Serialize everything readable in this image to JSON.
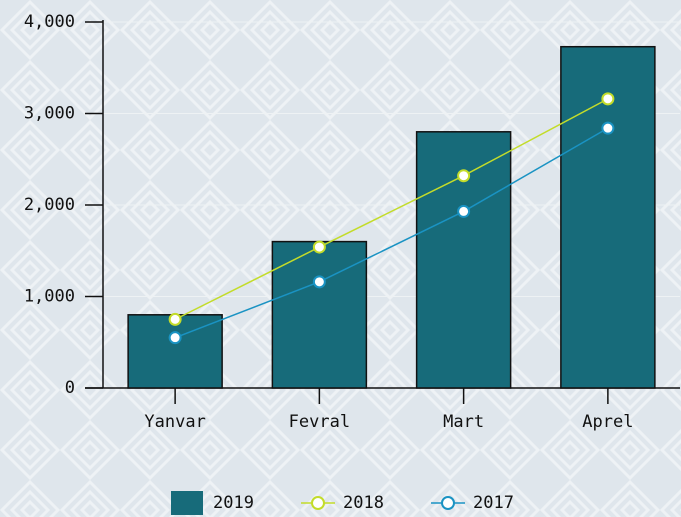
{
  "chart_data": {
    "type": "bar",
    "categories": [
      "Yanvar",
      "Fevral",
      "Mart",
      "Aprel"
    ],
    "series": [
      {
        "name": "2019",
        "type": "bar",
        "color": "#176b7a",
        "values": [
          800,
          1600,
          2800,
          3730
        ]
      },
      {
        "name": "2018",
        "type": "line",
        "color": "#c3dc2a",
        "values": [
          750,
          1540,
          2320,
          3160
        ]
      },
      {
        "name": "2017",
        "type": "line",
        "color": "#1a93c3",
        "values": [
          550,
          1160,
          1930,
          2840
        ]
      }
    ],
    "ylim": [
      0,
      4000
    ],
    "yticks": [
      0,
      {
        "value": 1000,
        "label": "1,000"
      },
      {
        "value": 2000,
        "label": "2,000"
      },
      {
        "value": 3000,
        "label": "3,000"
      },
      {
        "value": 4000,
        "label": "4,000"
      }
    ],
    "grid": true,
    "legend": "bottom"
  }
}
